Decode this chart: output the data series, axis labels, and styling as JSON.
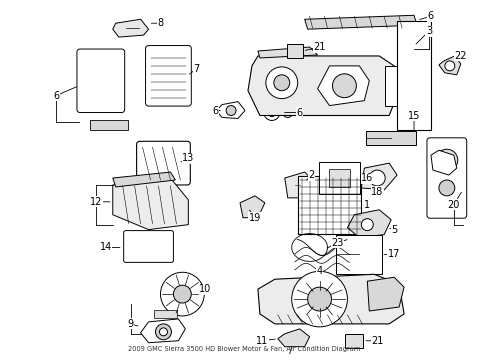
{
  "title": "2009 GMC Sierra 3500 HD Blower Motor & Fan, Air Condition Diagram",
  "bg_color": "#ffffff",
  "fig_width": 4.89,
  "fig_height": 3.6,
  "dpi": 100
}
